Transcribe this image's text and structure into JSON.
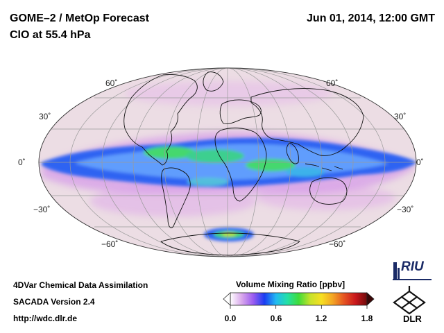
{
  "header": {
    "title_line1": "GOME–2 / MetOp Forecast",
    "title_line2": "ClO at 55.4 hPa",
    "datetime": "Jun 01, 2014, 12:00 GMT"
  },
  "map": {
    "projection": "Mollweide (global)",
    "lat_labels": [
      "60˚",
      "30˚",
      "0˚",
      "−30˚",
      "−60˚"
    ],
    "colors": {
      "background_low": "#ecdde4",
      "band_blue": "#2f63f2",
      "band_light": "#8ab0ff",
      "band_green": "#44d86e",
      "band_magenta": "#d59ce8",
      "coastline": "#111111",
      "grid": "#9a9a9a"
    }
  },
  "footer": {
    "line1": "4DVar Chemical Data Assimilation",
    "line2": "SACADA Version 2.4",
    "line3": "http://wdc.dlr.de"
  },
  "colorbar": {
    "title": "Volume Mixing Ratio [ppbv]",
    "min": 0.0,
    "max": 1.8,
    "ticks": [
      "0.0",
      "0.6",
      "1.2",
      "1.8"
    ],
    "tick_values": [
      0.0,
      0.6,
      1.2,
      1.8
    ],
    "colors": [
      "#ffffff",
      "#d9a8ec",
      "#9b5cf0",
      "#1a3df2",
      "#22b9f2",
      "#23e0a8",
      "#3fdc3a",
      "#c5e22b",
      "#f6df22",
      "#f3a424",
      "#e55322",
      "#c9171c",
      "#6f0a0a"
    ]
  },
  "logos": {
    "riu": "RIU",
    "dlr": "DLR"
  }
}
